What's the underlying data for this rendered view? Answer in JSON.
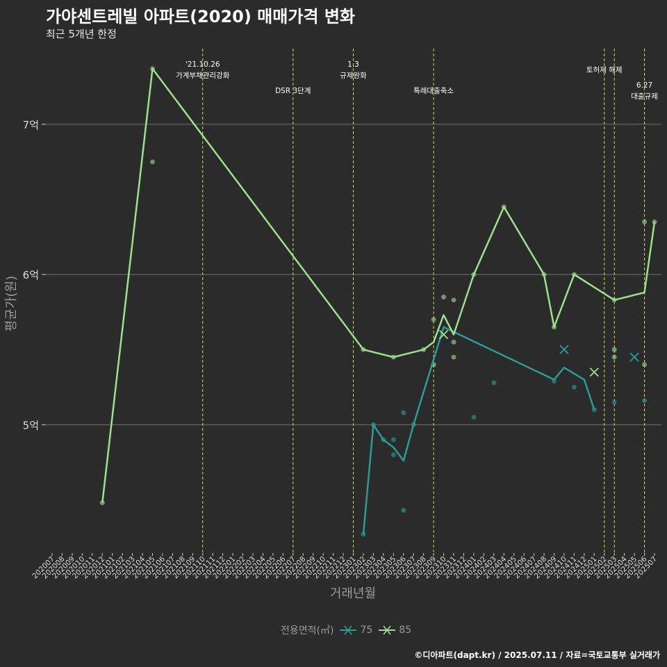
{
  "title": "가야센트레빌 아파트(2020) 매매가격 변화",
  "subtitle": "최근 5개년 한정",
  "caption": "©디아파트(dapt.kr) / 2025.07.11 / 자료=국토교통부 실거래가",
  "colors": {
    "background": "#2b2b2b",
    "series_75": "#2a9d96",
    "series_85": "#9be28a",
    "event_line": "#d4e04a",
    "grid": "#707070"
  },
  "chart_data": {
    "type": "line",
    "xlabel": "거래년월",
    "ylabel": "평균가(원)",
    "ylim": [
      4.15,
      7.55
    ],
    "yticks": [
      {
        "value": 5,
        "label": "5억"
      },
      {
        "value": 6,
        "label": "6억"
      },
      {
        "value": 7,
        "label": "7억"
      }
    ],
    "x_categories": [
      "202007",
      "202008",
      "202009",
      "202010",
      "202011",
      "202012",
      "202101",
      "202102",
      "202103",
      "202104",
      "202105",
      "202106",
      "202107",
      "202108",
      "202109",
      "202110",
      "202111",
      "202112",
      "202201",
      "202202",
      "202203",
      "202204",
      "202205",
      "202206",
      "202207",
      "202208",
      "202209",
      "202210",
      "202211",
      "202212",
      "202301",
      "202302",
      "202303",
      "202304",
      "202305",
      "202306",
      "202307",
      "202308",
      "202309",
      "202310",
      "202311",
      "202312",
      "202401",
      "202402",
      "202403",
      "202404",
      "202405",
      "202406",
      "202407",
      "202408",
      "202409",
      "202410",
      "202411",
      "202412",
      "202501",
      "202502",
      "202503",
      "202504",
      "202505",
      "202506",
      "202507"
    ],
    "legend_title": "전용면적(㎡)",
    "series": [
      {
        "name": "75",
        "line": [
          [
            "202302",
            4.27
          ],
          [
            "202303",
            5.0
          ],
          [
            "202304",
            4.9
          ],
          [
            "202305",
            4.85
          ],
          [
            "202306",
            4.76
          ],
          [
            "202307",
            5.0
          ],
          [
            "202310",
            5.65
          ],
          [
            "202409",
            5.3
          ],
          [
            "202410",
            5.38
          ],
          [
            "202412",
            5.3
          ],
          [
            "202501",
            5.1
          ]
        ],
        "points": [
          [
            "202302",
            4.27
          ],
          [
            "202303",
            5.0
          ],
          [
            "202304",
            4.9
          ],
          [
            "202305",
            4.9
          ],
          [
            "202305",
            4.8
          ],
          [
            "202306",
            5.08
          ],
          [
            "202306",
            4.43
          ],
          [
            "202307",
            5.0
          ],
          [
            "202401",
            5.05
          ],
          [
            "202403",
            5.28
          ],
          [
            "202409",
            5.29
          ],
          [
            "202411",
            5.25
          ],
          [
            "202501",
            5.1
          ],
          [
            "202503",
            5.15
          ],
          [
            "202506",
            5.16
          ]
        ],
        "crosses": [
          [
            "202410",
            5.5
          ],
          [
            "202505",
            5.45
          ]
        ]
      },
      {
        "name": "85",
        "line": [
          [
            "202012",
            4.48
          ],
          [
            "202105",
            7.37
          ],
          [
            "202302",
            5.5
          ],
          [
            "202305",
            5.45
          ],
          [
            "202308",
            5.5
          ],
          [
            "202309",
            5.55
          ],
          [
            "202310",
            5.73
          ],
          [
            "202311",
            5.6
          ],
          [
            "202401",
            6.0
          ],
          [
            "202404",
            6.45
          ],
          [
            "202408",
            6.0
          ],
          [
            "202409",
            5.65
          ],
          [
            "202411",
            6.0
          ],
          [
            "202503",
            5.83
          ],
          [
            "202506",
            5.88
          ],
          [
            "202507",
            6.35
          ]
        ],
        "points": [
          [
            "202012",
            4.48
          ],
          [
            "202105",
            6.75
          ],
          [
            "202105",
            7.37
          ],
          [
            "202302",
            5.5
          ],
          [
            "202305",
            5.45
          ],
          [
            "202308",
            5.5
          ],
          [
            "202309",
            5.7
          ],
          [
            "202309",
            5.4
          ],
          [
            "202310",
            5.85
          ],
          [
            "202311",
            5.83
          ],
          [
            "202311",
            5.55
          ],
          [
            "202311",
            5.45
          ],
          [
            "202401",
            6.0
          ],
          [
            "202404",
            6.45
          ],
          [
            "202408",
            6.0
          ],
          [
            "202409",
            5.65
          ],
          [
            "202411",
            6.0
          ],
          [
            "202503",
            5.83
          ],
          [
            "202503",
            5.5
          ],
          [
            "202503",
            5.45
          ],
          [
            "202506",
            6.35
          ],
          [
            "202506",
            5.4
          ],
          [
            "202507",
            6.35
          ]
        ],
        "crosses": [
          [
            "202310",
            5.6
          ],
          [
            "202501",
            5.35
          ]
        ]
      }
    ],
    "events": [
      {
        "x": "202110",
        "lines": [
          "'21.10.26",
          "가계부채관리강화"
        ],
        "row": 0
      },
      {
        "x": "202207",
        "lines": [
          "DSR 3단계"
        ],
        "row": 2
      },
      {
        "x": "202301",
        "lines": [
          "1.3",
          "규제완화"
        ],
        "row": 0
      },
      {
        "x": "202309",
        "lines": [
          "특례대출축소"
        ],
        "row": 2
      },
      {
        "x": "202502",
        "lines": [
          "토허제 해제"
        ],
        "row": 1
      },
      {
        "x": "202503",
        "lines": [],
        "row": 1
      },
      {
        "x": "202506",
        "lines": [
          "6.27",
          "대출규제"
        ],
        "row": 3
      }
    ]
  }
}
